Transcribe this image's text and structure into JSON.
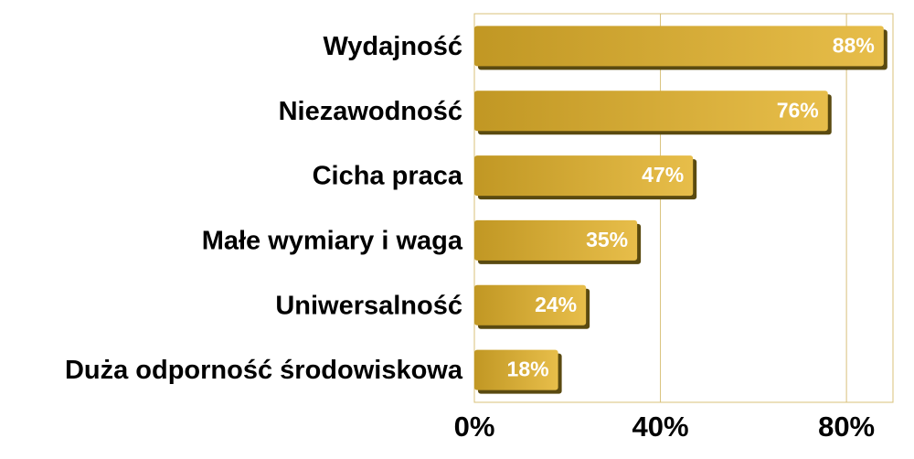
{
  "chart_data": {
    "type": "bar",
    "orientation": "horizontal",
    "categories": [
      "Wydajność",
      "Niezawodność",
      "Cicha praca",
      "Małe wymiary i waga",
      "Uniwersalność",
      "Duża odporność środowiskowa"
    ],
    "values": [
      88,
      76,
      47,
      35,
      24,
      18
    ],
    "value_labels": [
      "88%",
      "76%",
      "47%",
      "35%",
      "24%",
      "18%"
    ],
    "color": "#e3b22a",
    "xlim": [
      0,
      90
    ],
    "xticks": [
      {
        "value": 0,
        "label": "0%"
      },
      {
        "value": 40,
        "label": "40%"
      },
      {
        "value": 80,
        "label": "80%"
      }
    ],
    "grid": true
  }
}
